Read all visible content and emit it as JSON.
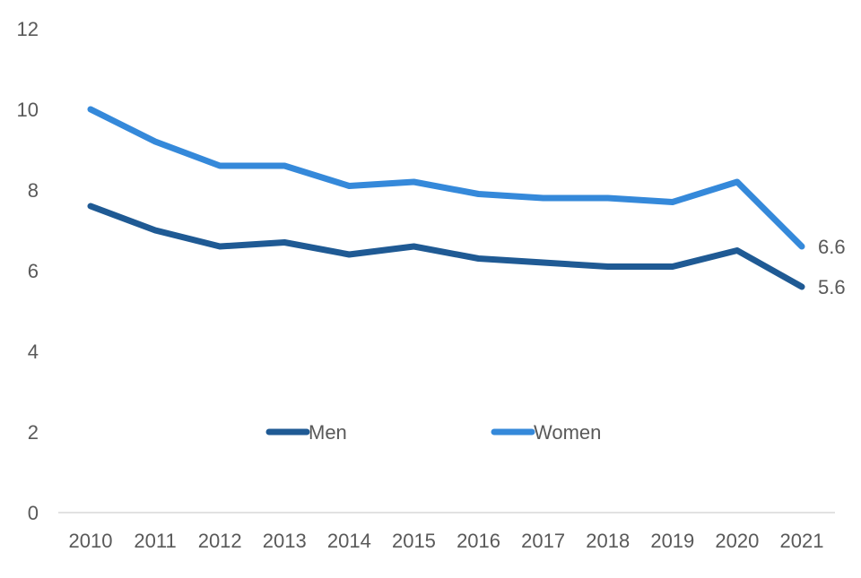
{
  "chart_data": {
    "type": "line",
    "title": "",
    "xlabel": "",
    "ylabel": "",
    "categories": [
      "2010",
      "2011",
      "2012",
      "2013",
      "2014",
      "2015",
      "2016",
      "2017",
      "2018",
      "2019",
      "2020",
      "2021"
    ],
    "ylim": [
      0,
      12
    ],
    "yticks": [
      "0",
      "2",
      "4",
      "6",
      "8",
      "10",
      "12"
    ],
    "grid": false,
    "legend_position": "inside-bottom-center",
    "series": [
      {
        "name": "Men",
        "color": "#1f5a94",
        "values": [
          7.6,
          7.0,
          6.6,
          6.7,
          6.4,
          6.6,
          6.3,
          6.2,
          6.1,
          6.1,
          6.5,
          5.6
        ],
        "end_label": "5.6"
      },
      {
        "name": "Women",
        "color": "#3589da",
        "values": [
          10.0,
          9.2,
          8.6,
          8.6,
          8.1,
          8.2,
          7.9,
          7.8,
          7.8,
          7.7,
          8.2,
          6.6
        ],
        "end_label": "6.6"
      }
    ]
  }
}
